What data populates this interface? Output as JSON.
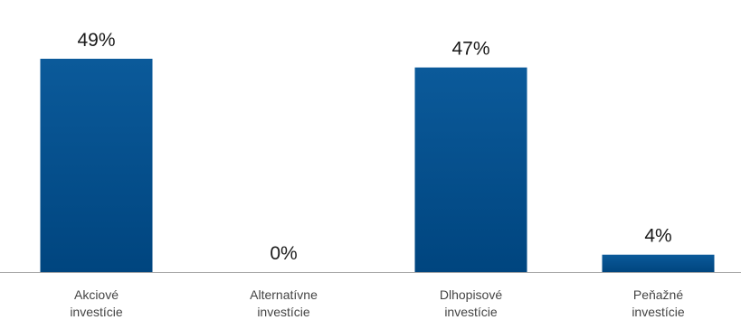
{
  "chart_data": {
    "type": "bar",
    "categories": [
      [
        "Akciové",
        "investície"
      ],
      [
        "Alternatívne",
        "investície"
      ],
      [
        "Dlhopisové",
        "investície"
      ],
      [
        "Peňažné",
        "investície"
      ]
    ],
    "values": [
      49,
      0,
      47,
      4
    ],
    "data_labels": [
      "49%",
      "0%",
      "47%",
      "4%"
    ],
    "ylim": [
      0,
      49
    ],
    "grid": false,
    "legend": "none",
    "colors": {
      "bar_top": "#0b5a9a",
      "bar_bottom": "#00457f",
      "axis": "#a6a6a6"
    }
  }
}
